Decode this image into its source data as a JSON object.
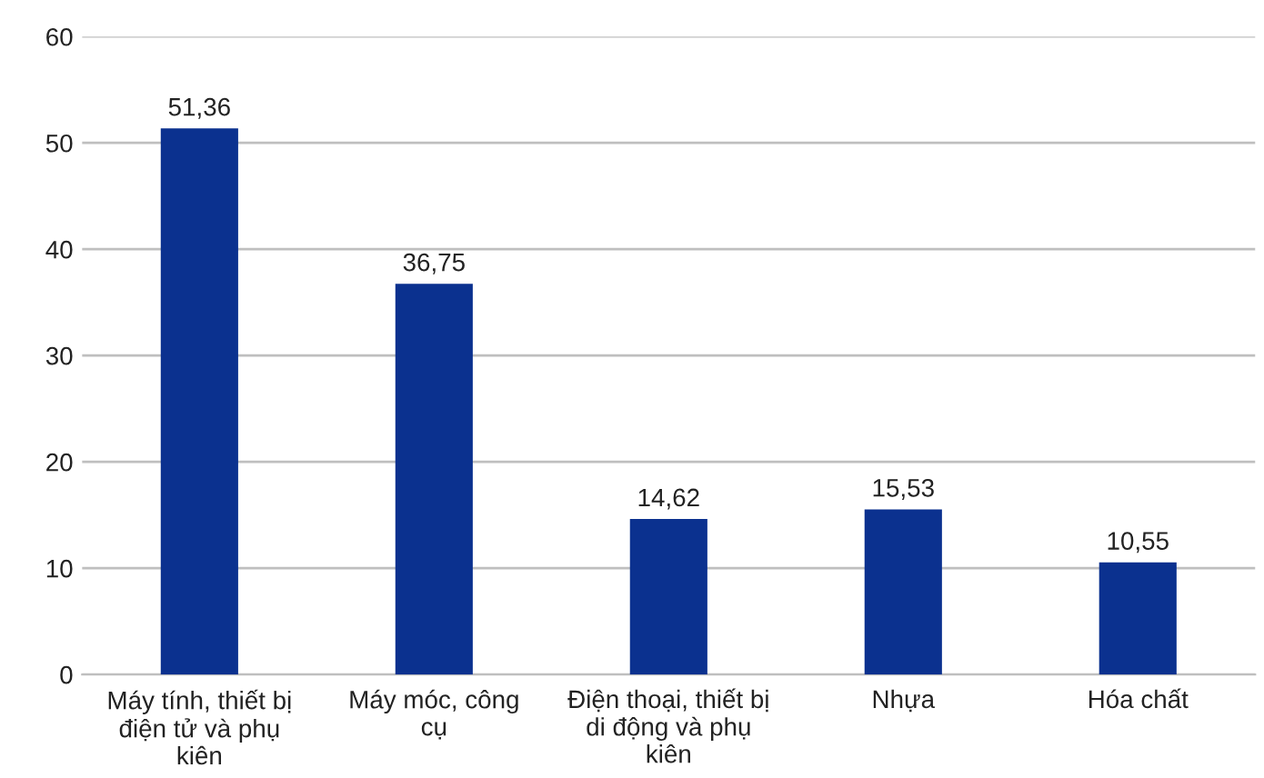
{
  "chart_data": {
    "type": "bar",
    "categories": [
      "Máy tính, thiết bị\nđiện tử và phụ\nkiên",
      "Máy móc, công\ncụ",
      "Điện thoại, thiết bị\ndi động và phụ\nkiên",
      "Nhựa",
      "Hóa chất"
    ],
    "values": [
      51.36,
      36.75,
      14.62,
      15.53,
      10.55
    ],
    "value_labels": [
      "51,36",
      "36,75",
      "14,62",
      "15,53",
      "10,55"
    ],
    "color": "#0b318f",
    "ylim": [
      0,
      60
    ],
    "yticks": [
      0,
      10,
      20,
      30,
      40,
      50,
      60
    ],
    "grid": "y"
  }
}
